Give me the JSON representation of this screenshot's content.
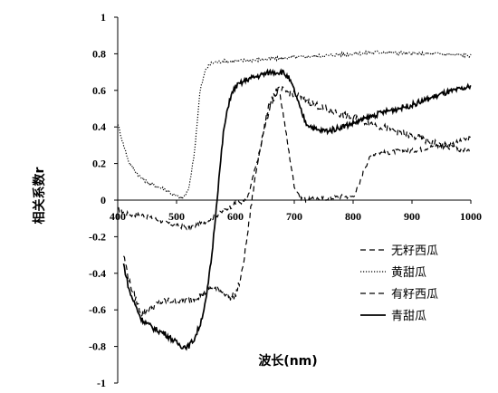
{
  "chart_data": {
    "type": "line",
    "xlabel": "波长(nm)",
    "ylabel": "相关系数r",
    "xlim": [
      400,
      1000
    ],
    "ylim": [
      -1,
      1
    ],
    "x_ticks": [
      "400",
      "500",
      "600",
      "700",
      "800",
      "900",
      "1000"
    ],
    "y_ticks": [
      "1",
      "0.8",
      "0.6",
      "0.4",
      "0.2",
      "0",
      "-0.2",
      "-0.4",
      "-0.6",
      "-0.8",
      "-1"
    ],
    "x_tick_values": [
      400,
      500,
      600,
      700,
      800,
      900,
      1000
    ],
    "y_tick_values": [
      1,
      0.8,
      0.6,
      0.4,
      0.2,
      0,
      -0.2,
      -0.4,
      -0.6,
      -0.8,
      -1
    ],
    "grid": false,
    "legend_position": "bottom-right",
    "series": [
      {
        "name": "无籽西瓜",
        "style": "dashed",
        "noise": 0.012,
        "x": [
          400,
          420,
          440,
          460,
          480,
          500,
          520,
          540,
          560,
          580,
          600,
          620,
          640,
          650,
          660,
          670,
          675,
          680,
          690,
          700,
          710,
          720,
          740,
          760,
          780,
          800,
          810,
          820,
          830,
          840,
          860,
          880,
          900,
          920,
          940,
          960,
          980,
          1000
        ],
        "y": [
          -0.05,
          -0.08,
          -0.08,
          -0.1,
          -0.12,
          -0.14,
          -0.15,
          -0.13,
          -0.1,
          -0.06,
          -0.02,
          0.0,
          0.25,
          0.4,
          0.52,
          0.58,
          0.58,
          0.5,
          0.28,
          0.08,
          0.02,
          0.0,
          0.01,
          0.01,
          0.02,
          0.02,
          0.08,
          0.18,
          0.24,
          0.26,
          0.26,
          0.27,
          0.27,
          0.28,
          0.3,
          0.3,
          0.32,
          0.34
        ]
      },
      {
        "name": "黄甜瓜",
        "style": "dotted",
        "noise": 0.01,
        "x": [
          400,
          410,
          420,
          440,
          460,
          480,
          500,
          510,
          520,
          530,
          540,
          550,
          560,
          580,
          600,
          650,
          700,
          750,
          800,
          850,
          900,
          950,
          1000
        ],
        "y": [
          0.42,
          0.3,
          0.2,
          0.12,
          0.08,
          0.06,
          0.02,
          0.01,
          0.05,
          0.25,
          0.6,
          0.72,
          0.75,
          0.76,
          0.76,
          0.77,
          0.78,
          0.79,
          0.8,
          0.81,
          0.8,
          0.8,
          0.79
        ]
      },
      {
        "name": "有籽西瓜",
        "style": "dashed",
        "noise": 0.02,
        "x": [
          410,
          420,
          440,
          460,
          480,
          500,
          520,
          540,
          560,
          580,
          590,
          600,
          610,
          620,
          630,
          640,
          650,
          660,
          670,
          680,
          700,
          750,
          800,
          850,
          900,
          950,
          980,
          1000
        ],
        "y": [
          -0.3,
          -0.45,
          -0.62,
          -0.58,
          -0.55,
          -0.55,
          -0.55,
          -0.52,
          -0.48,
          -0.5,
          -0.53,
          -0.52,
          -0.42,
          -0.2,
          0.05,
          0.25,
          0.42,
          0.55,
          0.6,
          0.6,
          0.58,
          0.5,
          0.45,
          0.4,
          0.35,
          0.3,
          0.28,
          0.26
        ]
      },
      {
        "name": "青甜瓜",
        "style": "solid",
        "noise": 0.015,
        "x": [
          410,
          420,
          440,
          460,
          480,
          500,
          510,
          520,
          530,
          540,
          550,
          560,
          570,
          580,
          590,
          600,
          620,
          640,
          660,
          680,
          690,
          700,
          710,
          720,
          740,
          760,
          780,
          800,
          850,
          900,
          950,
          1000
        ],
        "y": [
          -0.35,
          -0.5,
          -0.65,
          -0.7,
          -0.73,
          -0.78,
          -0.8,
          -0.8,
          -0.76,
          -0.68,
          -0.55,
          -0.3,
          0.05,
          0.38,
          0.55,
          0.62,
          0.66,
          0.68,
          0.7,
          0.7,
          0.67,
          0.6,
          0.5,
          0.42,
          0.38,
          0.38,
          0.4,
          0.42,
          0.48,
          0.52,
          0.58,
          0.62
        ]
      }
    ]
  }
}
